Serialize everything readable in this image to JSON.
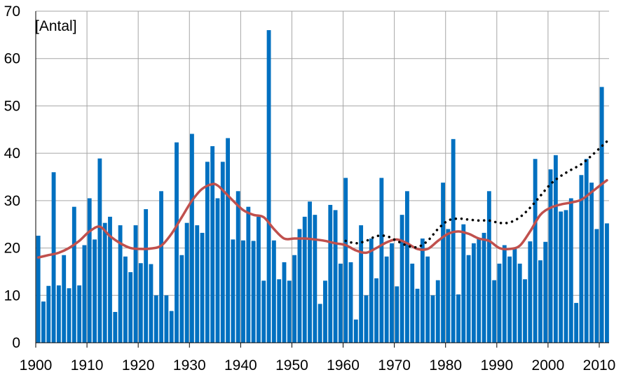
{
  "chart_data": {
    "type": "bar",
    "unit_label": "[Antal]",
    "ylim": [
      0,
      70
    ],
    "xlim": [
      1900,
      2012
    ],
    "y_ticks": [
      0,
      10,
      20,
      30,
      40,
      50,
      60,
      70
    ],
    "x_ticks": [
      1900,
      1910,
      1920,
      1930,
      1940,
      1950,
      1960,
      1970,
      1980,
      1990,
      2000,
      2010
    ],
    "grid": true,
    "colors": {
      "bars": "#0070c0",
      "smooth": "#c0504d",
      "dotted": "#000000",
      "grid": "#a6a6a6",
      "axis": "#000000"
    },
    "series": [
      {
        "type": "bar",
        "years": [
          1900,
          1901,
          1902,
          1903,
          1904,
          1905,
          1906,
          1907,
          1908,
          1909,
          1910,
          1911,
          1912,
          1913,
          1914,
          1915,
          1916,
          1917,
          1918,
          1919,
          1920,
          1921,
          1922,
          1923,
          1924,
          1925,
          1926,
          1927,
          1928,
          1929,
          1930,
          1931,
          1932,
          1933,
          1934,
          1935,
          1936,
          1937,
          1938,
          1939,
          1940,
          1941,
          1942,
          1943,
          1944,
          1945,
          1946,
          1947,
          1948,
          1949,
          1950,
          1951,
          1952,
          1953,
          1954,
          1955,
          1956,
          1957,
          1958,
          1959,
          1960,
          1961,
          1962,
          1963,
          1964,
          1965,
          1966,
          1967,
          1968,
          1969,
          1970,
          1971,
          1972,
          1973,
          1974,
          1975,
          1976,
          1977,
          1978,
          1979,
          1980,
          1981,
          1982,
          1983,
          1984,
          1985,
          1986,
          1987,
          1988,
          1989,
          1990,
          1991,
          1992,
          1993,
          1994,
          1995,
          1996,
          1997,
          1998,
          1999,
          2000,
          2001,
          2002,
          2003,
          2004,
          2005,
          2006,
          2007,
          2008,
          2009,
          2010,
          2011
        ],
        "values": [
          22.6,
          8.7,
          12,
          36,
          12.1,
          18.5,
          11.5,
          28.7,
          12.1,
          20.6,
          30.5,
          21.8,
          38.9,
          25.3,
          26.6,
          6.5,
          24.8,
          18.2,
          14.9,
          24.8,
          16.8,
          28.2,
          16.6,
          10,
          32,
          10,
          6.7,
          42.3,
          18.5,
          25.3,
          44.1,
          24.8,
          23.2,
          38.2,
          41.5,
          30.5,
          38.2,
          43.2,
          21.8,
          32,
          21.6,
          28.7,
          21.5,
          26.6,
          13.1,
          66,
          21.6,
          13.4,
          17,
          13.1,
          18.5,
          24,
          26.6,
          29.8,
          27,
          8.2,
          13.1,
          29.1,
          28,
          16.7,
          34.8,
          17,
          4.9,
          24.8,
          10,
          22,
          13.6,
          34.8,
          18.2,
          21,
          11.9,
          27,
          32,
          16.7,
          11.4,
          22,
          18.2,
          10,
          13.2,
          33.8,
          24,
          43,
          10.2,
          25,
          18.5,
          21,
          22,
          23.2,
          32,
          13.2,
          16.7,
          20.6,
          18.2,
          19.8,
          16.7,
          13.4,
          21.4,
          38.8,
          17.4,
          21.3,
          36.6,
          39.6,
          27.7,
          28,
          30.5,
          8.4,
          35.4,
          38.8,
          33.8,
          24,
          54,
          25.2
        ]
      },
      {
        "type": "line",
        "style": "smooth",
        "x": [
          1900,
          1902,
          1904,
          1906,
          1908,
          1910,
          1912,
          1914,
          1916,
          1918,
          1920,
          1922,
          1924,
          1926,
          1928,
          1930,
          1932,
          1934,
          1935,
          1936,
          1938,
          1940,
          1942,
          1944,
          1946,
          1948,
          1950,
          1952,
          1954,
          1956,
          1958,
          1960,
          1962,
          1964,
          1966,
          1968,
          1970,
          1972,
          1974,
          1976,
          1978,
          1980,
          1982,
          1984,
          1986,
          1988,
          1990,
          1992,
          1994,
          1996,
          1998,
          2000,
          2002,
          2004,
          2006,
          2008,
          2010,
          2011
        ],
        "values": [
          18,
          18.5,
          19,
          20,
          21.5,
          23.5,
          24.5,
          22.5,
          21,
          20,
          19.8,
          19.9,
          20.5,
          23,
          26.5,
          30,
          32.5,
          33.5,
          33.2,
          32.2,
          30,
          28,
          27,
          26.5,
          24,
          22,
          22,
          22,
          21.8,
          21.5,
          21,
          20.6,
          19.5,
          19,
          20,
          21.2,
          21.8,
          21,
          19.8,
          19.8,
          21.5,
          23,
          23.5,
          23,
          22,
          21.5,
          20,
          19.8,
          20.5,
          23.5,
          27,
          28.5,
          29.2,
          29.6,
          30.2,
          31.8,
          33.5,
          34.3
        ]
      },
      {
        "type": "line",
        "style": "dotted",
        "x": [
          1960,
          1962,
          1964,
          1966,
          1968,
          1970,
          1972,
          1974,
          1976,
          1978,
          1980,
          1982,
          1984,
          1986,
          1988,
          1990,
          1992,
          1994,
          1996,
          1998,
          2000,
          2002,
          2004,
          2006,
          2008,
          2010,
          2011
        ],
        "values": [
          21.5,
          21,
          21.5,
          22.5,
          22.5,
          21.5,
          20.5,
          20.2,
          21.5,
          24,
          25.8,
          26.2,
          26,
          25.8,
          25.8,
          25.3,
          25.4,
          26.5,
          28.5,
          31,
          33.5,
          35.2,
          36.5,
          37.7,
          39.5,
          41.5,
          42.5
        ]
      }
    ]
  }
}
